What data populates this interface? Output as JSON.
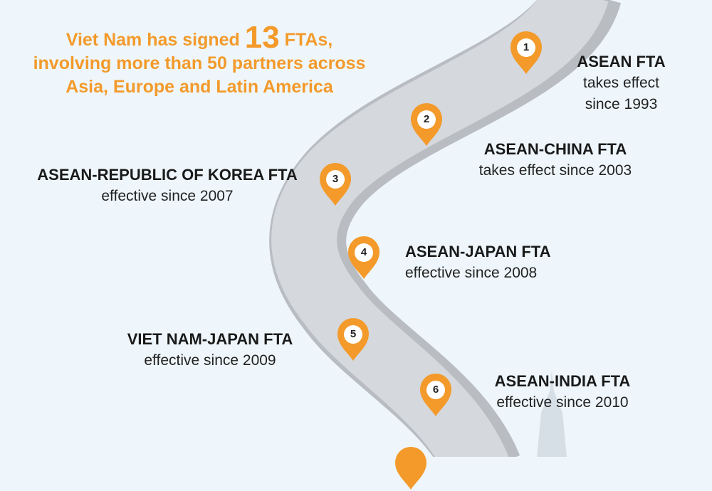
{
  "headline": {
    "pre": "Viet Nam has signed ",
    "count": "13",
    "post": " FTAs,",
    "line2": "involving more than 50 partners across",
    "line3": "Asia, Europe and Latin America"
  },
  "colors": {
    "accent": "#f39a2b",
    "road": "#cfd2d6",
    "background": "#eef6fb"
  },
  "milestones": [
    {
      "number": "1",
      "title": "ASEAN FTA",
      "line1": "takes effect",
      "line2": "since 1993"
    },
    {
      "number": "2",
      "title": "ASEAN-CHINA FTA",
      "line1": "takes effect since 2003"
    },
    {
      "number": "3",
      "title": "ASEAN-REPUBLIC OF KOREA FTA",
      "line1": "effective since 2007"
    },
    {
      "number": "4",
      "title": "ASEAN-JAPAN FTA",
      "line1": "effective since 2008"
    },
    {
      "number": "5",
      "title": "VIET NAM-JAPAN FTA",
      "line1": "effective since 2009"
    },
    {
      "number": "6",
      "title": "ASEAN-INDIA FTA",
      "line1": "effective since 2010"
    }
  ]
}
